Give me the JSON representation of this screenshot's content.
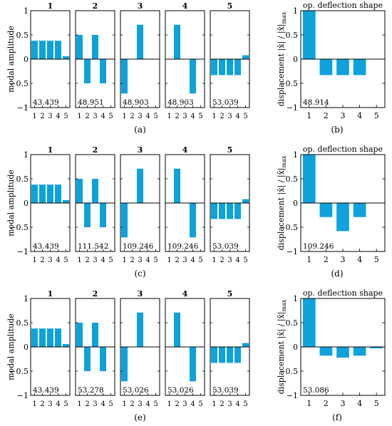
{
  "chart_data": {
    "type": "bar",
    "mode_ylabel": "modal amplitude",
    "ods_title": "op. deflection shape",
    "ods_ylabel": "displacement |x̂| / |x̂|max",
    "ods_ylabel_main": "displacement |",
    "ods_ylabel_x1": "x̂",
    "ods_ylabel_mid": "| / |",
    "ods_ylabel_x2": "x̂",
    "ods_ylabel_end": "|",
    "ods_ylabel_sub": "max",
    "ylim": [
      -1,
      1
    ],
    "yticks": [
      "1",
      "0.5",
      "0",
      "−0.5",
      "−1"
    ],
    "ytick_values": [
      1,
      0.5,
      0,
      -0.5,
      -1
    ],
    "dof_labels": [
      "1",
      "2",
      "3",
      "4",
      "5"
    ],
    "mode_titles": [
      "1",
      "2",
      "3",
      "4",
      "5"
    ],
    "bar_color": "#0ea2dd",
    "mode_shapes": [
      [
        0.38,
        0.38,
        0.38,
        0.38,
        0.06
      ],
      [
        0.5,
        -0.5,
        0.5,
        -0.5,
        0.0
      ],
      [
        -0.71,
        0.0,
        0.71,
        0.0,
        0.0
      ],
      [
        0.0,
        0.71,
        0.0,
        -0.71,
        0.0
      ],
      [
        -0.33,
        -0.33,
        -0.33,
        -0.33,
        0.08
      ]
    ],
    "rows": [
      {
        "caption_left": "(a)",
        "caption_right": "(b)",
        "frequencies": [
          "43.439",
          "48.951",
          "48.903",
          "48.903",
          "53.039"
        ],
        "ods_frequency": "48.914",
        "ods_values": [
          1.0,
          -0.33,
          -0.33,
          -0.33,
          0.0
        ]
      },
      {
        "caption_left": "(c)",
        "caption_right": "(d)",
        "frequencies": [
          "43.439",
          "111.542",
          "109.246",
          "109.246",
          "53.039"
        ],
        "ods_frequency": "109.246",
        "ods_values": [
          1.0,
          -0.29,
          -0.58,
          -0.29,
          0.0
        ]
      },
      {
        "caption_left": "(e)",
        "caption_right": "(f)",
        "frequencies": [
          "43.439",
          "53.278",
          "53.026",
          "53.026",
          "53.039"
        ],
        "ods_frequency": "53.086",
        "ods_values": [
          1.0,
          -0.18,
          -0.22,
          -0.18,
          -0.03
        ]
      }
    ]
  }
}
